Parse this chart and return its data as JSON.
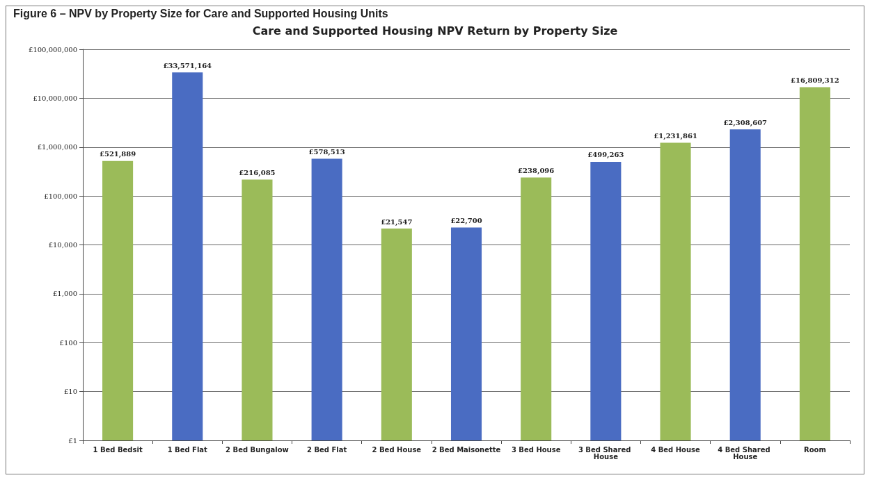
{
  "chart_data": {
    "type": "bar",
    "title": "Care and Supported Housing NPV Return by Property Size",
    "annotations": [
      "Figure 6 – NPV by Property Size for Care and Supported Housing Units"
    ],
    "categories": [
      "1 Bed Bedsit",
      "1 Bed Flat",
      "2 Bed Bungalow",
      "2 Bed Flat",
      "2 Bed House",
      "2 Bed Maisonette",
      "3 Bed House",
      "3 Bed Shared House",
      "4 Bed House",
      "4 Bed Shared House",
      "Room"
    ],
    "values": [
      521889,
      33571164,
      216085,
      578513,
      21547,
      22700,
      238096,
      499263,
      1231861,
      2308607,
      16809312
    ],
    "value_labels": [
      "£521,889",
      "£33,571,164",
      "£216,085",
      "£578,513",
      "£21,547",
      "£22,700",
      "£238,096",
      "£499,263",
      "£1,231,861",
      "£2,308,607",
      "£16,809,312"
    ],
    "colors": [
      "#9bbb59",
      "#4a6cc2",
      "#9bbb59",
      "#4a6cc2",
      "#9bbb59",
      "#4a6cc2",
      "#9bbb59",
      "#4a6cc2",
      "#9bbb59",
      "#4a6cc2",
      "#9bbb59"
    ],
    "log": "y",
    "ylim": [
      1,
      100000000
    ],
    "yticks": [
      {
        "value": 1,
        "label": "£1"
      },
      {
        "value": 10,
        "label": "£10"
      },
      {
        "value": 100,
        "label": "£100"
      },
      {
        "value": 1000,
        "label": "£1,000"
      },
      {
        "value": 10000,
        "label": "£10,000"
      },
      {
        "value": 100000,
        "label": "£100,000"
      },
      {
        "value": 1000000,
        "label": "£1,000,000"
      },
      {
        "value": 10000000,
        "label": "£10,000,000"
      },
      {
        "value": 100000000,
        "label": "£100,000,000"
      }
    ],
    "grid": "y"
  }
}
